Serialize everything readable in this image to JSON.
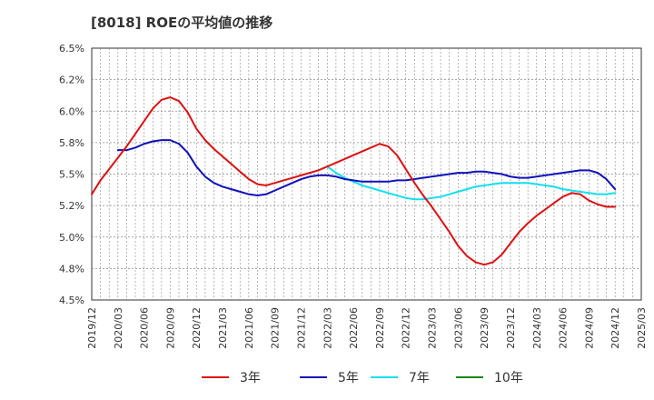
{
  "chart_data": {
    "type": "line",
    "title": "[8018]  ROEの平均値の推移",
    "xlabel": "",
    "ylabel": "",
    "ylim": [
      4.5,
      6.5
    ],
    "yticks": [
      "4.5%",
      "4.8%",
      "5.0%",
      "5.2%",
      "5.5%",
      "5.8%",
      "6.0%",
      "6.2%",
      "6.5%"
    ],
    "xticks": [
      "2019/12",
      "2020/03",
      "2020/06",
      "2020/09",
      "2020/12",
      "2021/03",
      "2021/06",
      "2021/09",
      "2021/12",
      "2022/03",
      "2022/06",
      "2022/09",
      "2022/12",
      "2023/03",
      "2023/06",
      "2023/09",
      "2023/12",
      "2024/03",
      "2024/06",
      "2024/09",
      "2024/12",
      "2025/03"
    ],
    "grid": true,
    "legend_position": "bottom",
    "series": [
      {
        "name": "3年",
        "color": "#dd1111",
        "points": [
          [
            "2019/12",
            5.34
          ],
          [
            "2020/01",
            5.45
          ],
          [
            "2020/02",
            5.54
          ],
          [
            "2020/03",
            5.63
          ],
          [
            "2020/04",
            5.72
          ],
          [
            "2020/05",
            5.82
          ],
          [
            "2020/06",
            5.92
          ],
          [
            "2020/07",
            6.02
          ],
          [
            "2020/08",
            6.09
          ],
          [
            "2020/09",
            6.11
          ],
          [
            "2020/10",
            6.08
          ],
          [
            "2020/11",
            5.99
          ],
          [
            "2020/12",
            5.86
          ],
          [
            "2021/01",
            5.77
          ],
          [
            "2021/02",
            5.7
          ],
          [
            "2021/03",
            5.64
          ],
          [
            "2021/04",
            5.58
          ],
          [
            "2021/05",
            5.52
          ],
          [
            "2021/06",
            5.46
          ],
          [
            "2021/07",
            5.42
          ],
          [
            "2021/08",
            5.41
          ],
          [
            "2021/09",
            5.43
          ],
          [
            "2021/10",
            5.45
          ],
          [
            "2021/11",
            5.47
          ],
          [
            "2021/12",
            5.49
          ],
          [
            "2022/01",
            5.51
          ],
          [
            "2022/02",
            5.53
          ],
          [
            "2022/03",
            5.56
          ],
          [
            "2022/04",
            5.59
          ],
          [
            "2022/05",
            5.62
          ],
          [
            "2022/06",
            5.65
          ],
          [
            "2022/07",
            5.68
          ],
          [
            "2022/08",
            5.71
          ],
          [
            "2022/09",
            5.74
          ],
          [
            "2022/10",
            5.72
          ],
          [
            "2022/11",
            5.65
          ],
          [
            "2022/12",
            5.54
          ],
          [
            "2023/01",
            5.43
          ],
          [
            "2023/02",
            5.33
          ],
          [
            "2023/03",
            5.24
          ],
          [
            "2023/04",
            5.14
          ],
          [
            "2023/05",
            5.04
          ],
          [
            "2023/06",
            4.93
          ],
          [
            "2023/07",
            4.85
          ],
          [
            "2023/08",
            4.8
          ],
          [
            "2023/09",
            4.78
          ],
          [
            "2023/10",
            4.8
          ],
          [
            "2023/11",
            4.86
          ],
          [
            "2023/12",
            4.95
          ],
          [
            "2024/01",
            5.04
          ],
          [
            "2024/02",
            5.11
          ],
          [
            "2024/03",
            5.17
          ],
          [
            "2024/04",
            5.22
          ],
          [
            "2024/05",
            5.27
          ],
          [
            "2024/06",
            5.32
          ],
          [
            "2024/07",
            5.35
          ],
          [
            "2024/08",
            5.34
          ],
          [
            "2024/09",
            5.29
          ],
          [
            "2024/10",
            5.26
          ],
          [
            "2024/11",
            5.24
          ],
          [
            "2024/12",
            5.24
          ]
        ]
      },
      {
        "name": "5年",
        "color": "#1111bb",
        "points": [
          [
            "2020/03",
            5.69
          ],
          [
            "2020/04",
            5.69
          ],
          [
            "2020/05",
            5.71
          ],
          [
            "2020/06",
            5.74
          ],
          [
            "2020/07",
            5.76
          ],
          [
            "2020/08",
            5.77
          ],
          [
            "2020/09",
            5.77
          ],
          [
            "2020/10",
            5.74
          ],
          [
            "2020/11",
            5.67
          ],
          [
            "2020/12",
            5.56
          ],
          [
            "2021/01",
            5.48
          ],
          [
            "2021/02",
            5.43
          ],
          [
            "2021/03",
            5.4
          ],
          [
            "2021/04",
            5.38
          ],
          [
            "2021/05",
            5.36
          ],
          [
            "2021/06",
            5.34
          ],
          [
            "2021/07",
            5.33
          ],
          [
            "2021/08",
            5.34
          ],
          [
            "2021/09",
            5.37
          ],
          [
            "2021/10",
            5.4
          ],
          [
            "2021/11",
            5.43
          ],
          [
            "2021/12",
            5.46
          ],
          [
            "2022/01",
            5.48
          ],
          [
            "2022/02",
            5.49
          ],
          [
            "2022/03",
            5.49
          ],
          [
            "2022/04",
            5.48
          ],
          [
            "2022/05",
            5.46
          ],
          [
            "2022/06",
            5.45
          ],
          [
            "2022/07",
            5.44
          ],
          [
            "2022/08",
            5.44
          ],
          [
            "2022/09",
            5.44
          ],
          [
            "2022/10",
            5.44
          ],
          [
            "2022/11",
            5.45
          ],
          [
            "2022/12",
            5.45
          ],
          [
            "2023/01",
            5.46
          ],
          [
            "2023/02",
            5.47
          ],
          [
            "2023/03",
            5.48
          ],
          [
            "2023/04",
            5.49
          ],
          [
            "2023/05",
            5.5
          ],
          [
            "2023/06",
            5.51
          ],
          [
            "2023/07",
            5.51
          ],
          [
            "2023/08",
            5.52
          ],
          [
            "2023/09",
            5.52
          ],
          [
            "2023/10",
            5.51
          ],
          [
            "2023/11",
            5.5
          ],
          [
            "2023/12",
            5.48
          ],
          [
            "2024/01",
            5.47
          ],
          [
            "2024/02",
            5.47
          ],
          [
            "2024/03",
            5.48
          ],
          [
            "2024/04",
            5.49
          ],
          [
            "2024/05",
            5.5
          ],
          [
            "2024/06",
            5.51
          ],
          [
            "2024/07",
            5.52
          ],
          [
            "2024/08",
            5.53
          ],
          [
            "2024/09",
            5.53
          ],
          [
            "2024/10",
            5.51
          ],
          [
            "2024/11",
            5.46
          ],
          [
            "2024/12",
            5.38
          ]
        ]
      },
      {
        "name": "7年",
        "color": "#11e0f0",
        "points": [
          [
            "2022/03",
            5.56
          ],
          [
            "2022/04",
            5.51
          ],
          [
            "2022/05",
            5.47
          ],
          [
            "2022/06",
            5.44
          ],
          [
            "2022/07",
            5.41
          ],
          [
            "2022/08",
            5.39
          ],
          [
            "2022/09",
            5.37
          ],
          [
            "2022/10",
            5.35
          ],
          [
            "2022/11",
            5.33
          ],
          [
            "2022/12",
            5.31
          ],
          [
            "2023/01",
            5.3
          ],
          [
            "2023/02",
            5.3
          ],
          [
            "2023/03",
            5.31
          ],
          [
            "2023/04",
            5.32
          ],
          [
            "2023/05",
            5.34
          ],
          [
            "2023/06",
            5.36
          ],
          [
            "2023/07",
            5.38
          ],
          [
            "2023/08",
            5.4
          ],
          [
            "2023/09",
            5.41
          ],
          [
            "2023/10",
            5.42
          ],
          [
            "2023/11",
            5.43
          ],
          [
            "2023/12",
            5.43
          ],
          [
            "2024/01",
            5.43
          ],
          [
            "2024/02",
            5.43
          ],
          [
            "2024/03",
            5.42
          ],
          [
            "2024/04",
            5.41
          ],
          [
            "2024/05",
            5.4
          ],
          [
            "2024/06",
            5.38
          ],
          [
            "2024/07",
            5.37
          ],
          [
            "2024/08",
            5.36
          ],
          [
            "2024/09",
            5.35
          ],
          [
            "2024/10",
            5.34
          ],
          [
            "2024/11",
            5.34
          ],
          [
            "2024/12",
            5.35
          ]
        ]
      },
      {
        "name": "10年",
        "color": "#118811",
        "points": []
      }
    ]
  }
}
